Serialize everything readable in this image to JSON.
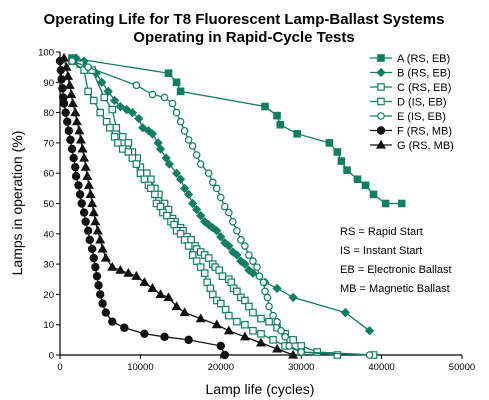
{
  "chart_data": {
    "type": "line",
    "title": [
      "Operating Life for T8 Fluorescent Lamp-Ballast Systems",
      "Operating in Rapid-Cycle Tests"
    ],
    "xlabel": "Lamp life (cycles)",
    "ylabel": "Lamps in operation (%)",
    "xlim": [
      0,
      50000
    ],
    "ylim": [
      0,
      100
    ],
    "xticks": [
      0,
      10000,
      20000,
      30000,
      40000,
      50000
    ],
    "yticks": [
      0,
      10,
      20,
      30,
      40,
      50,
      60,
      70,
      80,
      90,
      100
    ],
    "grid": false,
    "legend_position": "top-right",
    "colors": {
      "green": "#127d64",
      "black": "#111111"
    },
    "series": [
      {
        "name": "A (RS, EB)",
        "color": "#127d64",
        "marker": "filled-square",
        "points": [
          [
            1500,
            98
          ],
          [
            13500,
            93
          ],
          [
            14500,
            90
          ],
          [
            15000,
            87
          ],
          [
            25500,
            82
          ],
          [
            27000,
            79
          ],
          [
            27400,
            76
          ],
          [
            29500,
            73
          ],
          [
            33500,
            70
          ],
          [
            34500,
            67
          ],
          [
            35000,
            64
          ],
          [
            35700,
            61
          ],
          [
            37000,
            58
          ],
          [
            38000,
            56
          ],
          [
            39000,
            53
          ],
          [
            40500,
            50
          ],
          [
            42500,
            50
          ]
        ]
      },
      {
        "name": "B (RS, EB)",
        "color": "#127d64",
        "marker": "filled-diamond",
        "points": [
          [
            2000,
            98
          ],
          [
            3000,
            97
          ],
          [
            4500,
            93
          ],
          [
            5200,
            90
          ],
          [
            6000,
            87
          ],
          [
            6800,
            84
          ],
          [
            7500,
            82
          ],
          [
            8300,
            81
          ],
          [
            9000,
            80
          ],
          [
            9800,
            78
          ],
          [
            10300,
            75
          ],
          [
            11000,
            74
          ],
          [
            11500,
            73
          ],
          [
            12200,
            70
          ],
          [
            12500,
            68
          ],
          [
            13200,
            65
          ],
          [
            13600,
            63
          ],
          [
            14500,
            60
          ],
          [
            15000,
            58
          ],
          [
            15500,
            55
          ],
          [
            16000,
            53
          ],
          [
            16500,
            50
          ],
          [
            17000,
            48
          ],
          [
            17500,
            46
          ],
          [
            18000,
            44
          ],
          [
            18500,
            43
          ],
          [
            19000,
            42
          ],
          [
            19500,
            41
          ],
          [
            20000,
            39
          ],
          [
            20500,
            37
          ],
          [
            21000,
            36
          ],
          [
            21500,
            34
          ],
          [
            22000,
            33
          ],
          [
            22500,
            31
          ],
          [
            23000,
            30
          ],
          [
            23500,
            28
          ],
          [
            24000,
            27
          ],
          [
            25500,
            24
          ],
          [
            27000,
            22
          ],
          [
            29000,
            19
          ],
          [
            35500,
            14
          ],
          [
            38500,
            8
          ]
        ]
      },
      {
        "name": "C (RS, EB)",
        "color": "#127d64",
        "marker": "open-square",
        "points": [
          [
            2500,
            96
          ],
          [
            4000,
            94
          ],
          [
            5500,
            85
          ],
          [
            6500,
            81
          ],
          [
            7000,
            75
          ],
          [
            7800,
            72
          ],
          [
            8500,
            70
          ],
          [
            9000,
            67
          ],
          [
            9600,
            65
          ],
          [
            10000,
            62
          ],
          [
            10800,
            60
          ],
          [
            11300,
            58
          ],
          [
            11800,
            55
          ],
          [
            12300,
            53
          ],
          [
            13000,
            50
          ],
          [
            13500,
            48
          ],
          [
            14000,
            45
          ],
          [
            14300,
            44
          ],
          [
            15000,
            42
          ],
          [
            15300,
            41
          ],
          [
            15800,
            39
          ],
          [
            16300,
            38
          ],
          [
            16800,
            36
          ],
          [
            17000,
            35
          ],
          [
            17500,
            34
          ],
          [
            18000,
            33
          ],
          [
            18500,
            32
          ],
          [
            19000,
            30
          ],
          [
            19300,
            29
          ],
          [
            19800,
            28
          ],
          [
            20200,
            26
          ],
          [
            21000,
            25
          ],
          [
            21300,
            24
          ],
          [
            21600,
            22
          ],
          [
            22000,
            21
          ],
          [
            22500,
            19
          ],
          [
            23000,
            18
          ],
          [
            23500,
            16
          ],
          [
            24000,
            14
          ],
          [
            25000,
            12
          ],
          [
            26000,
            11
          ],
          [
            27000,
            9
          ],
          [
            28000,
            7
          ],
          [
            29000,
            5
          ],
          [
            30000,
            3
          ],
          [
            32000,
            1
          ],
          [
            39000,
            0
          ]
        ]
      },
      {
        "name": "D (IS, EB)",
        "color": "#127d64",
        "marker": "open-square",
        "points": [
          [
            1500,
            97
          ],
          [
            3000,
            94
          ],
          [
            3500,
            87
          ],
          [
            4200,
            84
          ],
          [
            5000,
            80
          ],
          [
            5800,
            77
          ],
          [
            6200,
            75
          ],
          [
            6800,
            72
          ],
          [
            7200,
            70
          ],
          [
            7800,
            68
          ],
          [
            8500,
            67
          ],
          [
            9000,
            65
          ],
          [
            9500,
            63
          ],
          [
            10000,
            60
          ],
          [
            10500,
            58
          ],
          [
            11000,
            56
          ],
          [
            11300,
            55
          ],
          [
            11800,
            53
          ],
          [
            12000,
            50
          ],
          [
            12500,
            49
          ],
          [
            12800,
            47
          ],
          [
            13300,
            46
          ],
          [
            13800,
            44
          ],
          [
            14200,
            43
          ],
          [
            14500,
            41
          ],
          [
            15000,
            40
          ],
          [
            15500,
            38
          ],
          [
            16000,
            36
          ],
          [
            16500,
            33
          ],
          [
            17000,
            31
          ],
          [
            17500,
            29
          ],
          [
            18000,
            27
          ],
          [
            18300,
            24
          ],
          [
            18700,
            22
          ],
          [
            19000,
            20
          ],
          [
            19500,
            18
          ],
          [
            20000,
            17
          ],
          [
            20600,
            15
          ],
          [
            21000,
            13
          ],
          [
            22000,
            11
          ],
          [
            23000,
            10
          ],
          [
            24000,
            8
          ],
          [
            25000,
            7
          ],
          [
            26500,
            5
          ],
          [
            28000,
            3
          ],
          [
            30000,
            1
          ],
          [
            34500,
            0
          ]
        ]
      },
      {
        "name": "E (IS, EB)",
        "color": "#127d64",
        "marker": "open-circle",
        "points": [
          [
            1500,
            97
          ],
          [
            3500,
            95
          ],
          [
            9500,
            89
          ],
          [
            11500,
            86
          ],
          [
            13000,
            85
          ],
          [
            14000,
            83
          ],
          [
            14500,
            80
          ],
          [
            15000,
            77
          ],
          [
            15500,
            74
          ],
          [
            16000,
            71
          ],
          [
            16500,
            69
          ],
          [
            17000,
            66
          ],
          [
            17500,
            63
          ],
          [
            18500,
            60
          ],
          [
            19000,
            57
          ],
          [
            19500,
            55
          ],
          [
            20000,
            52
          ],
          [
            20500,
            49
          ],
          [
            21000,
            47
          ],
          [
            21500,
            44
          ],
          [
            22000,
            41
          ],
          [
            22500,
            38
          ],
          [
            23000,
            36
          ],
          [
            23500,
            33
          ],
          [
            24000,
            31
          ],
          [
            24500,
            29
          ],
          [
            24800,
            26
          ],
          [
            25300,
            24
          ],
          [
            25500,
            21
          ],
          [
            25800,
            19
          ],
          [
            26000,
            16
          ],
          [
            26500,
            13
          ],
          [
            27000,
            11
          ],
          [
            27500,
            8
          ],
          [
            28000,
            6
          ],
          [
            28500,
            3
          ],
          [
            30000,
            1
          ],
          [
            38500,
            0
          ]
        ]
      },
      {
        "name": "F (RS, MB)",
        "color": "#111111",
        "marker": "filled-circle",
        "points": [
          [
            0,
            97
          ],
          [
            100,
            94
          ],
          [
            200,
            91
          ],
          [
            300,
            88
          ],
          [
            400,
            85
          ],
          [
            500,
            83
          ],
          [
            700,
            80
          ],
          [
            900,
            77
          ],
          [
            1100,
            74
          ],
          [
            1300,
            71
          ],
          [
            1500,
            68
          ],
          [
            1700,
            65
          ],
          [
            1900,
            62
          ],
          [
            2000,
            59
          ],
          [
            2300,
            56
          ],
          [
            2500,
            53
          ],
          [
            2700,
            50
          ],
          [
            3000,
            47
          ],
          [
            3200,
            44
          ],
          [
            3500,
            41
          ],
          [
            3700,
            38
          ],
          [
            4000,
            35
          ],
          [
            4200,
            32
          ],
          [
            4400,
            29
          ],
          [
            4600,
            26
          ],
          [
            4800,
            23
          ],
          [
            5000,
            20
          ],
          [
            5300,
            17
          ],
          [
            5700,
            14
          ],
          [
            6500,
            11
          ],
          [
            8000,
            9
          ],
          [
            10500,
            7
          ],
          [
            13000,
            6
          ],
          [
            16000,
            5
          ],
          [
            20000,
            3
          ],
          [
            20500,
            0
          ]
        ]
      },
      {
        "name": "G (RS, MB)",
        "color": "#111111",
        "marker": "filled-triangle",
        "points": [
          [
            500,
            98
          ],
          [
            800,
            95
          ],
          [
            1000,
            92
          ],
          [
            1200,
            89
          ],
          [
            1400,
            86
          ],
          [
            1600,
            83
          ],
          [
            1900,
            80
          ],
          [
            2100,
            77
          ],
          [
            2400,
            74
          ],
          [
            2600,
            71
          ],
          [
            2800,
            68
          ],
          [
            3000,
            65
          ],
          [
            3200,
            62
          ],
          [
            3400,
            59
          ],
          [
            3600,
            56
          ],
          [
            3800,
            53
          ],
          [
            4000,
            50
          ],
          [
            4200,
            47
          ],
          [
            4400,
            44
          ],
          [
            4700,
            41
          ],
          [
            5000,
            38
          ],
          [
            5300,
            35
          ],
          [
            5700,
            32
          ],
          [
            6500,
            29
          ],
          [
            7500,
            28
          ],
          [
            8500,
            27
          ],
          [
            9500,
            26
          ],
          [
            10500,
            24
          ],
          [
            11500,
            22
          ],
          [
            12500,
            20
          ],
          [
            13500,
            19
          ],
          [
            14500,
            16
          ],
          [
            15500,
            14
          ],
          [
            17500,
            12
          ],
          [
            19500,
            10
          ],
          [
            21000,
            8
          ],
          [
            23000,
            6
          ],
          [
            25000,
            4
          ],
          [
            27000,
            2
          ],
          [
            29000,
            0
          ]
        ]
      }
    ],
    "annotations": [
      "RS = Rapid Start",
      "IS = Instant Start",
      "EB = Electronic Ballast",
      "MB = Magnetic Ballast"
    ]
  }
}
